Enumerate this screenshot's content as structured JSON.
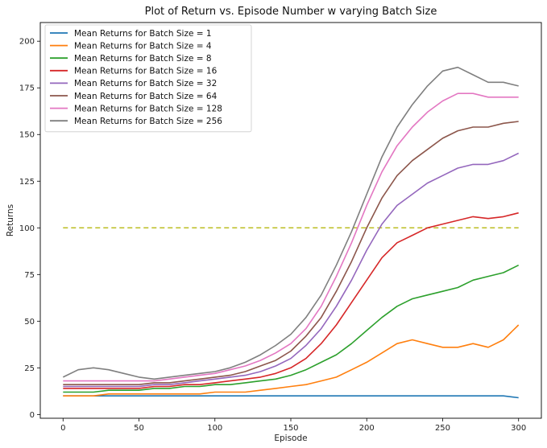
{
  "chart_data": {
    "type": "line",
    "title": "Plot of Return vs. Episode Number w varying Batch Size",
    "xlabel": "Episode",
    "ylabel": "Returns",
    "xlim": [
      -15,
      315
    ],
    "ylim": [
      -2,
      210
    ],
    "xticks": [
      0,
      50,
      100,
      150,
      200,
      250,
      300
    ],
    "yticks": [
      0,
      25,
      50,
      75,
      100,
      125,
      150,
      175,
      200
    ],
    "grid": false,
    "legend_position": "top-left",
    "x": [
      0,
      10,
      20,
      30,
      40,
      50,
      60,
      70,
      80,
      90,
      100,
      110,
      120,
      130,
      140,
      150,
      160,
      170,
      180,
      190,
      200,
      210,
      220,
      230,
      240,
      250,
      260,
      270,
      280,
      290,
      300
    ],
    "series": [
      {
        "name": "Mean Returns for Batch Size = 1",
        "color": "#1f77b4",
        "values": [
          10,
          10,
          10,
          10,
          10,
          10,
          10,
          10,
          10,
          10,
          10,
          10,
          10,
          10,
          10,
          10,
          10,
          10,
          10,
          10,
          10,
          10,
          10,
          10,
          10,
          10,
          10,
          10,
          10,
          10,
          9
        ]
      },
      {
        "name": "Mean Returns for Batch Size = 4",
        "color": "#ff7f0e",
        "values": [
          10,
          10,
          10,
          11,
          11,
          11,
          11,
          11,
          11,
          11,
          12,
          12,
          12,
          13,
          14,
          15,
          16,
          18,
          20,
          24,
          28,
          33,
          38,
          40,
          38,
          36,
          36,
          38,
          36,
          40,
          48
        ]
      },
      {
        "name": "Mean Returns for Batch Size = 8",
        "color": "#2ca02c",
        "values": [
          12,
          12,
          12,
          13,
          13,
          13,
          14,
          14,
          15,
          15,
          16,
          16,
          17,
          18,
          19,
          21,
          24,
          28,
          32,
          38,
          45,
          52,
          58,
          62,
          64,
          66,
          68,
          72,
          74,
          76,
          80
        ]
      },
      {
        "name": "Mean Returns for Batch Size = 16",
        "color": "#d62728",
        "values": [
          14,
          14,
          14,
          14,
          14,
          14,
          15,
          15,
          16,
          16,
          17,
          18,
          19,
          20,
          22,
          25,
          30,
          38,
          48,
          60,
          72,
          84,
          92,
          96,
          100,
          102,
          104,
          106,
          105,
          106,
          108
        ]
      },
      {
        "name": "Mean Returns for Batch Size = 32",
        "color": "#9467bd",
        "values": [
          15,
          15,
          15,
          15,
          15,
          15,
          16,
          16,
          17,
          18,
          19,
          20,
          21,
          23,
          26,
          30,
          37,
          46,
          58,
          72,
          88,
          102,
          112,
          118,
          124,
          128,
          132,
          134,
          134,
          136,
          140
        ]
      },
      {
        "name": "Mean Returns for Batch Size = 64",
        "color": "#8c564b",
        "values": [
          16,
          16,
          16,
          16,
          16,
          16,
          17,
          17,
          18,
          19,
          20,
          21,
          23,
          26,
          29,
          34,
          42,
          52,
          66,
          82,
          100,
          116,
          128,
          136,
          142,
          148,
          152,
          154,
          154,
          156,
          157
        ]
      },
      {
        "name": "Mean Returns for Batch Size = 128",
        "color": "#e377c2",
        "values": [
          18,
          18,
          18,
          18,
          18,
          18,
          18,
          19,
          20,
          21,
          22,
          24,
          26,
          29,
          33,
          38,
          46,
          58,
          74,
          92,
          112,
          130,
          144,
          154,
          162,
          168,
          172,
          172,
          170,
          170,
          170
        ]
      },
      {
        "name": "Mean Returns for Batch Size = 256",
        "color": "#7f7f7f",
        "values": [
          20,
          24,
          25,
          24,
          22,
          20,
          19,
          20,
          21,
          22,
          23,
          25,
          28,
          32,
          37,
          43,
          52,
          64,
          80,
          98,
          118,
          138,
          154,
          166,
          176,
          184,
          186,
          182,
          178,
          178,
          176
        ]
      }
    ],
    "reference_line": {
      "y": 100,
      "x_range": [
        0,
        300
      ],
      "color": "#bcbd22",
      "style": "dashed"
    }
  }
}
